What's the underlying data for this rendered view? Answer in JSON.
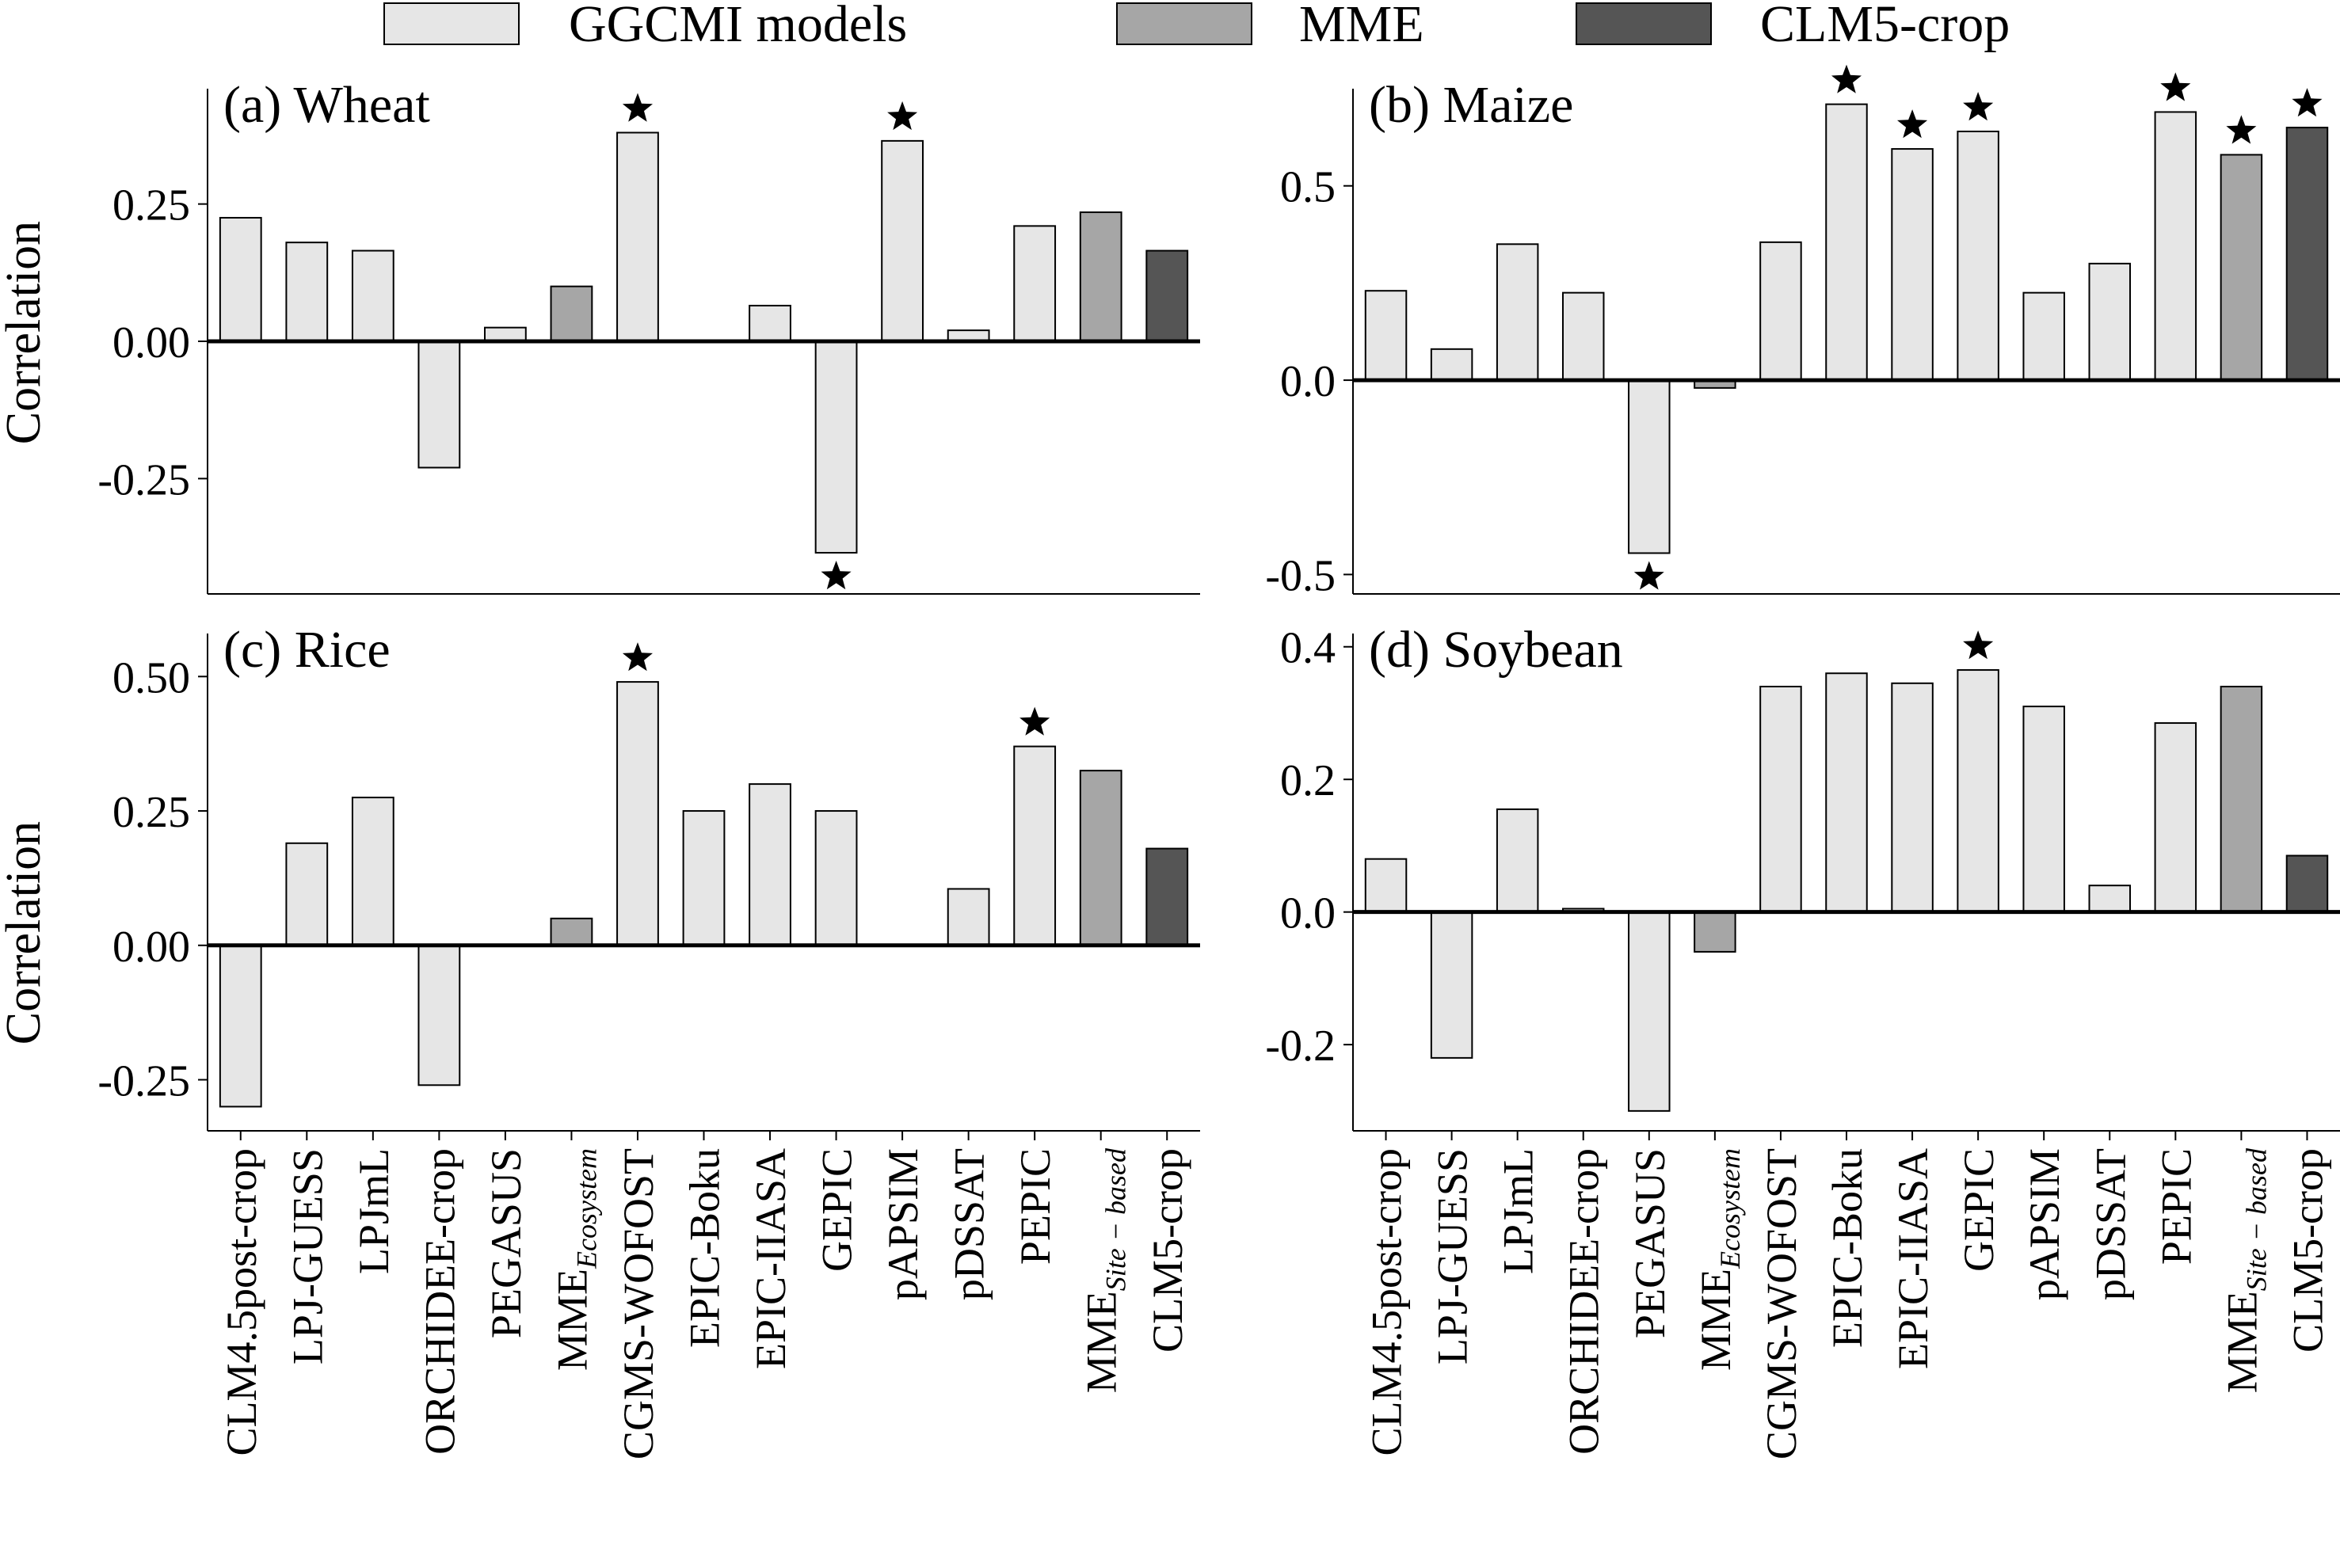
{
  "legend": [
    {
      "label": "GGCMI models",
      "color": "#e6e6e6"
    },
    {
      "label": "MME",
      "color": "#a6a6a6"
    },
    {
      "label": "CLM5-crop",
      "color": "#555555"
    }
  ],
  "colors": {
    "ggcmi": "#e6e6e6",
    "mme": "#a6a6a6",
    "clm5": "#555555"
  },
  "ylabel": "Correlation",
  "categories": [
    {
      "label": "CLM4.5post-crop",
      "group": "ggcmi"
    },
    {
      "label": "LPJ-GUESS",
      "group": "ggcmi"
    },
    {
      "label": "LPJmL",
      "group": "ggcmi"
    },
    {
      "label": "ORCHIDEE-crop",
      "group": "ggcmi"
    },
    {
      "label": "PEGASUS",
      "group": "ggcmi"
    },
    {
      "label": "MME",
      "sub": "Ecosystem",
      "group": "mme"
    },
    {
      "label": "CGMS-WOFOST",
      "group": "ggcmi"
    },
    {
      "label": "EPIC-Boku",
      "group": "ggcmi"
    },
    {
      "label": "EPIC-IIASA",
      "group": "ggcmi"
    },
    {
      "label": "GEPIC",
      "group": "ggcmi"
    },
    {
      "label": "pAPSIM",
      "group": "ggcmi"
    },
    {
      "label": "pDSSAT",
      "group": "ggcmi"
    },
    {
      "label": "PEPIC",
      "group": "ggcmi"
    },
    {
      "label": "MME",
      "sub": "Site − based",
      "group": "mme"
    },
    {
      "label": "CLM5-crop",
      "group": "clm5"
    }
  ],
  "chart_data": [
    {
      "type": "bar",
      "title": "(a) Wheat",
      "ylabel": "Correlation",
      "ylim": [
        -0.46,
        0.46
      ],
      "yticks": [
        -0.25,
        0.0,
        0.25
      ],
      "ytick_labels": [
        "-0.25",
        "0.00",
        "0.25"
      ],
      "values": [
        0.225,
        0.18,
        0.165,
        -0.23,
        0.025,
        0.1,
        0.38,
        null,
        0.065,
        -0.385,
        0.365,
        0.02,
        0.21,
        0.235,
        0.165
      ],
      "significant": [
        false,
        false,
        false,
        false,
        false,
        false,
        true,
        false,
        false,
        true,
        true,
        false,
        false,
        false,
        false
      ]
    },
    {
      "type": "bar",
      "title": "(b) Maize",
      "ylabel": "",
      "ylim": [
        -0.55,
        0.75
      ],
      "yticks": [
        -0.5,
        0.0,
        0.5
      ],
      "ytick_labels": [
        "-0.5",
        "0.0",
        "0.5"
      ],
      "values": [
        0.23,
        0.08,
        0.35,
        0.225,
        -0.445,
        -0.02,
        0.355,
        0.71,
        0.595,
        0.64,
        0.225,
        0.3,
        0.69,
        0.58,
        0.65
      ],
      "significant": [
        false,
        false,
        false,
        false,
        true,
        false,
        false,
        true,
        true,
        true,
        false,
        false,
        true,
        true,
        true
      ]
    },
    {
      "type": "bar",
      "title": "(c) Rice",
      "ylabel": "Correlation",
      "ylim": [
        -0.345,
        0.58
      ],
      "yticks": [
        -0.25,
        0.0,
        0.25,
        0.5
      ],
      "ytick_labels": [
        "-0.25",
        "0.00",
        "0.25",
        "0.50"
      ],
      "values": [
        -0.3,
        0.19,
        0.275,
        -0.26,
        null,
        0.05,
        0.49,
        0.25,
        0.3,
        0.25,
        null,
        0.105,
        0.37,
        0.325,
        0.18
      ],
      "significant": [
        false,
        false,
        false,
        false,
        false,
        false,
        true,
        false,
        false,
        false,
        false,
        false,
        true,
        false,
        false
      ]
    },
    {
      "type": "bar",
      "title": "(d) Soybean",
      "ylabel": "",
      "ylim": [
        -0.33,
        0.42
      ],
      "yticks": [
        -0.2,
        0.0,
        0.2,
        0.4
      ],
      "ytick_labels": [
        "-0.2",
        "0.0",
        "0.2",
        "0.4"
      ],
      "values": [
        0.08,
        -0.22,
        0.155,
        0.005,
        -0.3,
        -0.06,
        0.34,
        0.36,
        0.345,
        0.365,
        0.31,
        0.04,
        0.285,
        0.34,
        0.085
      ],
      "significant": [
        false,
        false,
        false,
        false,
        false,
        false,
        false,
        false,
        false,
        true,
        false,
        false,
        false,
        false,
        false
      ]
    }
  ]
}
